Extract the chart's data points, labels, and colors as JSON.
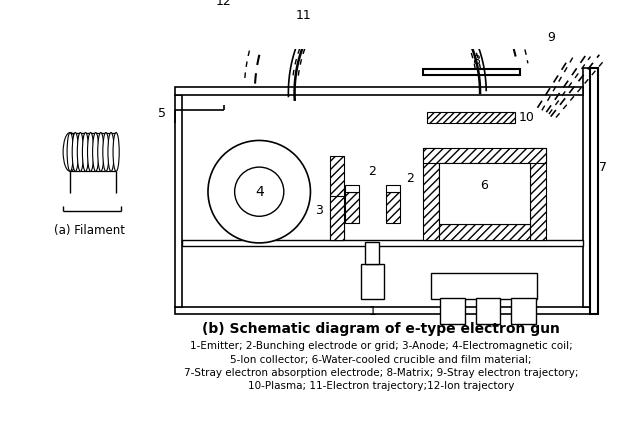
{
  "title_b": "(b) Schematic diagram of e-type electron gun",
  "title_a": "(a) Filament",
  "caption_lines": [
    "1-Emitter; 2-Bunching electrode or grid; 3-Anode; 4-Electromagnetic coil;",
    "5-Ion collector; 6-Water-cooled crucible and film material;",
    "7-Stray electron absorption electrode; 8-Matrix; 9-Stray electron trajectory;",
    "10-Plasma; 11-Electron trajectory;12-Ion trajectory"
  ],
  "bg_color": "#ffffff"
}
